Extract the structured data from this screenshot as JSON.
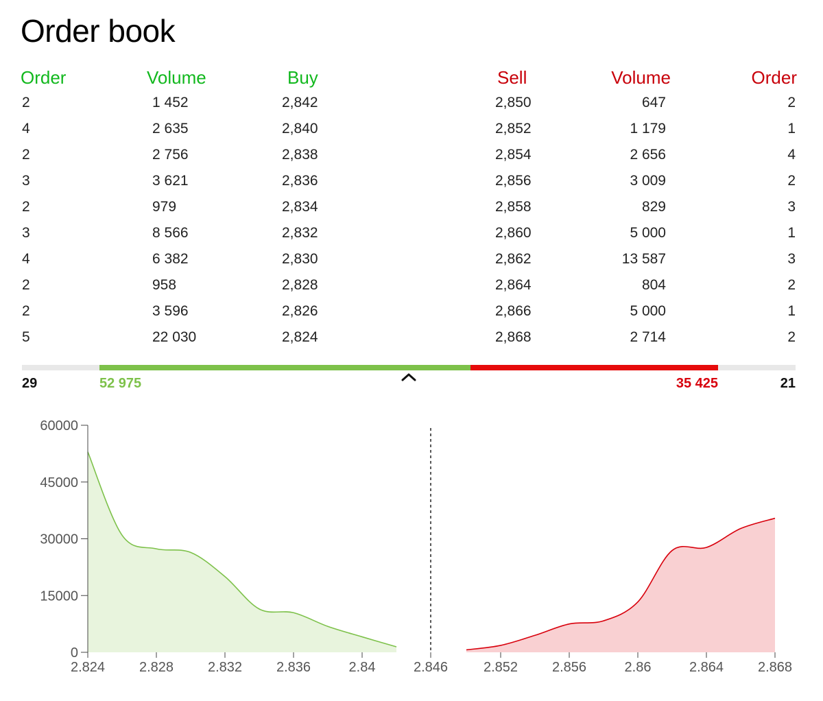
{
  "title": "Order book",
  "headers": {
    "buy_order": "Order",
    "buy_volume": "Volume",
    "buy_price": "Buy",
    "sell_price": "Sell",
    "sell_volume": "Volume",
    "sell_order": "Order"
  },
  "rows": [
    {
      "buy_order": "2",
      "buy_volume": "1 452",
      "buy_price": "2,842",
      "sell_price": "2,850",
      "sell_volume": "647",
      "sell_order": "2"
    },
    {
      "buy_order": "4",
      "buy_volume": "2 635",
      "buy_price": "2,840",
      "sell_price": "2,852",
      "sell_volume": "1 179",
      "sell_order": "1"
    },
    {
      "buy_order": "2",
      "buy_volume": "2 756",
      "buy_price": "2,838",
      "sell_price": "2,854",
      "sell_volume": "2 656",
      "sell_order": "4"
    },
    {
      "buy_order": "3",
      "buy_volume": "3 621",
      "buy_price": "2,836",
      "sell_price": "2,856",
      "sell_volume": "3 009",
      "sell_order": "2"
    },
    {
      "buy_order": "2",
      "buy_volume": "979",
      "buy_price": "2,834",
      "sell_price": "2,858",
      "sell_volume": "829",
      "sell_order": "3"
    },
    {
      "buy_order": "3",
      "buy_volume": "8 566",
      "buy_price": "2,832",
      "sell_price": "2,860",
      "sell_volume": "5 000",
      "sell_order": "1"
    },
    {
      "buy_order": "4",
      "buy_volume": "6 382",
      "buy_price": "2,830",
      "sell_price": "2,862",
      "sell_volume": "13 587",
      "sell_order": "3"
    },
    {
      "buy_order": "2",
      "buy_volume": "958",
      "buy_price": "2,828",
      "sell_price": "2,864",
      "sell_volume": "804",
      "sell_order": "2"
    },
    {
      "buy_order": "2",
      "buy_volume": "3 596",
      "buy_price": "2,826",
      "sell_price": "2,866",
      "sell_volume": "5 000",
      "sell_order": "1"
    },
    {
      "buy_order": "5",
      "buy_volume": "22 030",
      "buy_price": "2,824",
      "sell_price": "2,868",
      "sell_volume": "2 714",
      "sell_order": "2"
    }
  ],
  "totals": {
    "buy_orders": "29",
    "buy_volume": "52 975",
    "sell_volume": "35 425",
    "sell_orders": "21"
  },
  "colors": {
    "buy": "#7dc14a",
    "buy_fill": "#e8f4dd",
    "sell": "#d8000c",
    "sell_fill": "#f9d0d2",
    "buy_header": "#12b81e",
    "sell_header": "#c8000a"
  },
  "chart_data": {
    "type": "area",
    "title": "",
    "xlabel": "",
    "ylabel": "",
    "ylim": [
      0,
      60000
    ],
    "yticks": [
      0,
      15000,
      30000,
      45000,
      60000
    ],
    "xtick_labels_buy": [
      "2.824",
      "2.828",
      "2.832",
      "2.836",
      "2.84"
    ],
    "xtick_mid": "2.846",
    "xtick_labels_sell": [
      "2.852",
      "2.856",
      "2.86",
      "2.864",
      "2.868"
    ],
    "series": [
      {
        "type": "area",
        "x": [
          2.824,
          2.826,
          2.828,
          2.83,
          2.832,
          2.834,
          2.836,
          2.838,
          2.84,
          2.842
        ],
        "y": [
          52975,
          30945,
          27349,
          26391,
          20009,
          11443,
          10464,
          6843,
          4087,
          1452
        ]
      },
      {
        "type": "area",
        "x": [
          2.85,
          2.852,
          2.854,
          2.856,
          2.858,
          2.86,
          2.862,
          2.864,
          2.866,
          2.868
        ],
        "y": [
          647,
          1826,
          4482,
          7491,
          8320,
          13320,
          26907,
          27711,
          32711,
          35425
        ]
      }
    ],
    "divider_x": 2.846,
    "grid": false
  }
}
